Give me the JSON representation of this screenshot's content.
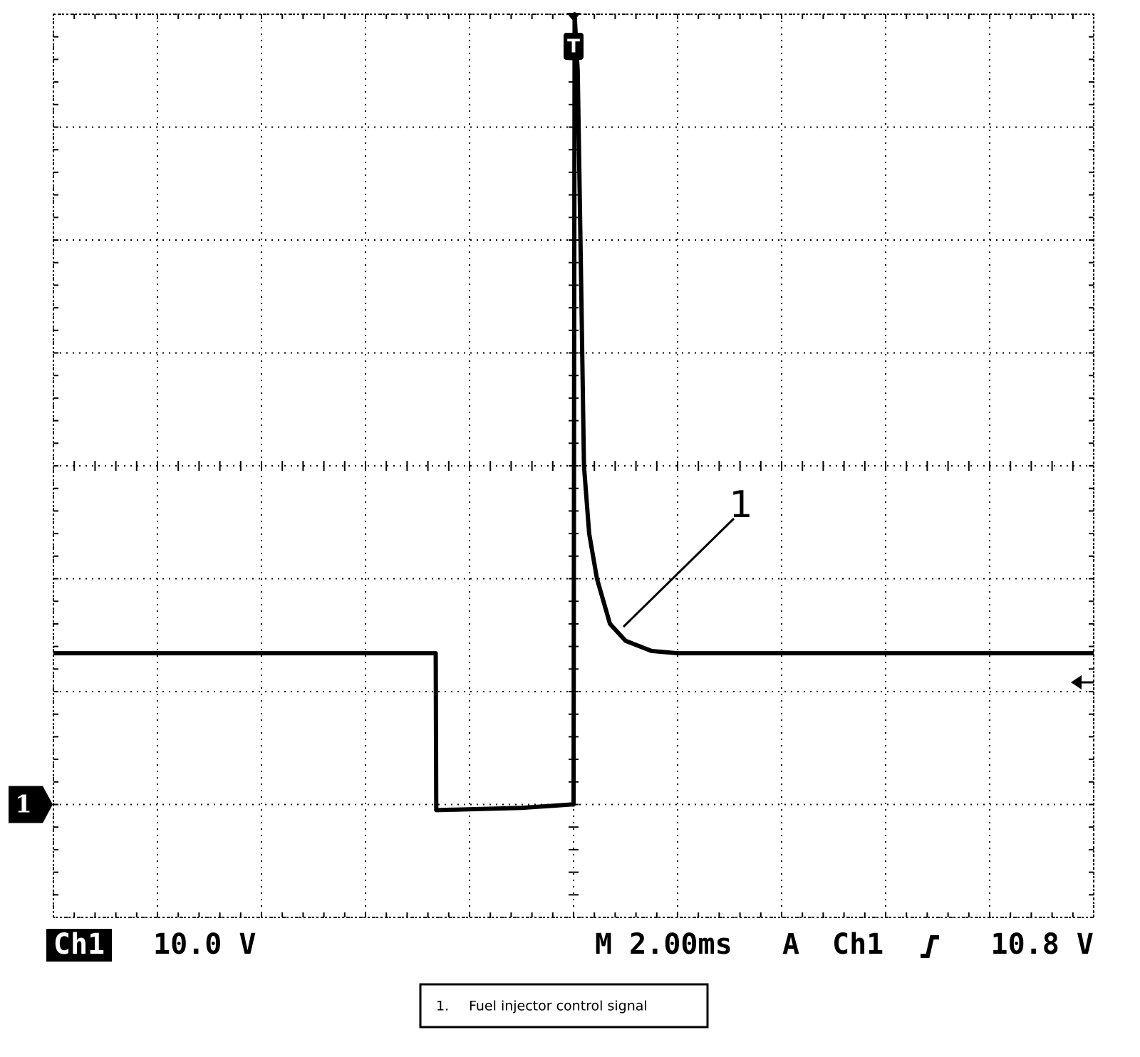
{
  "chart_data": {
    "type": "line",
    "x": [
      -10,
      -2.65,
      -2.64,
      -1,
      -0.05,
      0,
      0.02,
      0.08,
      0.15,
      0.2,
      0.3,
      0.45,
      0.7,
      1.0,
      1.5,
      2,
      10
    ],
    "values": [
      13.4,
      13.4,
      -0.5,
      -0.3,
      0,
      0,
      70,
      65,
      45,
      30,
      24,
      20,
      16,
      14.5,
      13.6,
      13.4,
      13.4
    ],
    "color": "#000000",
    "xlim": [
      -10,
      10
    ],
    "xticks": [
      -10,
      -8,
      -6,
      -4,
      -2,
      0,
      2,
      4,
      6,
      8,
      10
    ],
    "ylim": [
      -10,
      70
    ],
    "yticks": [
      -10,
      0,
      10,
      20,
      30,
      40,
      50,
      60,
      70
    ],
    "grid": true,
    "annotation": "1",
    "channel_marker": "1",
    "trigger_marker": "T",
    "status": {
      "channel": "Ch1",
      "scale": "10.0 V",
      "timebase": "M 2.00ms",
      "trigger_mode": "A",
      "trigger_source": "Ch1",
      "trigger_level": "10.8 V"
    },
    "caption": {
      "number": "1.",
      "text": "Fuel injector control signal"
    }
  }
}
